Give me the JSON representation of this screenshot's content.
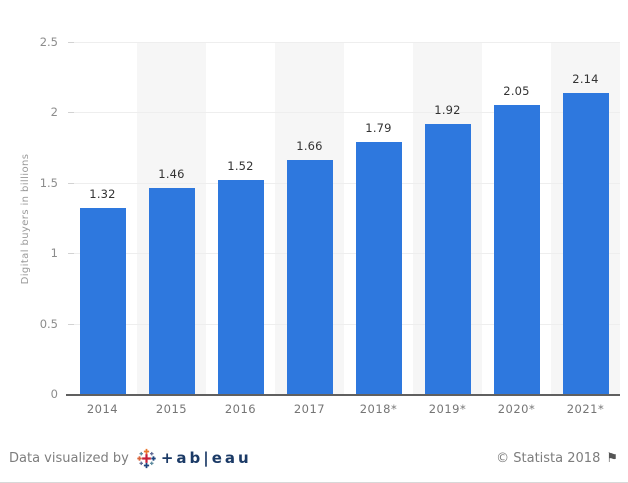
{
  "chart_data": {
    "type": "bar",
    "categories": [
      "2014",
      "2015",
      "2016",
      "2017",
      "2018*",
      "2019*",
      "2020*",
      "2021*"
    ],
    "values": [
      1.32,
      1.46,
      1.52,
      1.66,
      1.79,
      1.92,
      2.05,
      2.14
    ],
    "value_labels": [
      "1.32",
      "1.46",
      "1.52",
      "1.66",
      "1.79",
      "1.92",
      "2.05",
      "2.14"
    ],
    "title": "",
    "xlabel": "",
    "ylabel": "Digital buyers in billions",
    "ylim": [
      0,
      2.5
    ],
    "yticks": [
      0,
      0.5,
      1,
      1.5,
      2,
      2.5
    ],
    "ytick_labels": [
      "0",
      "0.5",
      "1",
      "1.5",
      "2",
      "2.5"
    ],
    "grid": true,
    "legend": false,
    "bar_color": "#2e78de",
    "band_color": "#f6f6f6",
    "banded_columns": [
      1,
      3,
      5,
      7
    ]
  },
  "footer": {
    "credit_left": "Data visualized by",
    "tableau_wordmark": "+ab|eau",
    "credit_right": "© Statista 2018",
    "flag_icon": "⚑"
  },
  "tableau_icon_colors": {
    "center": "#c72037",
    "top": "#e8762d",
    "bottom": "#1f457e",
    "left": "#d9643a",
    "right": "#1f457e",
    "corner_a": "#59879b",
    "corner_b": "#5c6692"
  }
}
